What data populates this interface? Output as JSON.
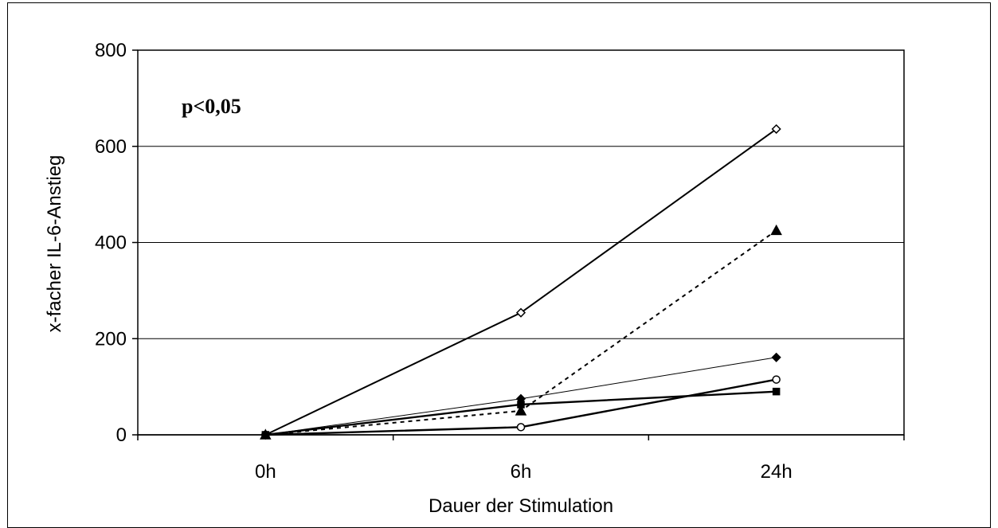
{
  "chart_data": {
    "type": "line",
    "categories": [
      "0h",
      "6h",
      "24h"
    ],
    "xlabel": "Dauer der Stimulation",
    "ylabel": "x-facher IL-6-Anstieg",
    "ylim": [
      0,
      800
    ],
    "yticks": [
      0,
      200,
      400,
      600,
      800
    ],
    "grid": true,
    "annotation": "p<0,05",
    "series": [
      {
        "values": [
          0,
          254,
          636
        ],
        "marker": "diamond-open",
        "line": "solid",
        "width": 2
      },
      {
        "values": [
          0,
          50,
          425
        ],
        "marker": "triangle-filled",
        "line": "dashed",
        "width": 2
      },
      {
        "values": [
          0,
          75,
          161
        ],
        "marker": "diamond-filled",
        "line": "solid",
        "width": 1
      },
      {
        "values": [
          0,
          16,
          115
        ],
        "marker": "circle-open",
        "line": "solid",
        "width": 2.4
      },
      {
        "values": [
          0,
          63,
          90
        ],
        "marker": "square-filled",
        "line": "solid",
        "width": 2.4
      }
    ]
  }
}
